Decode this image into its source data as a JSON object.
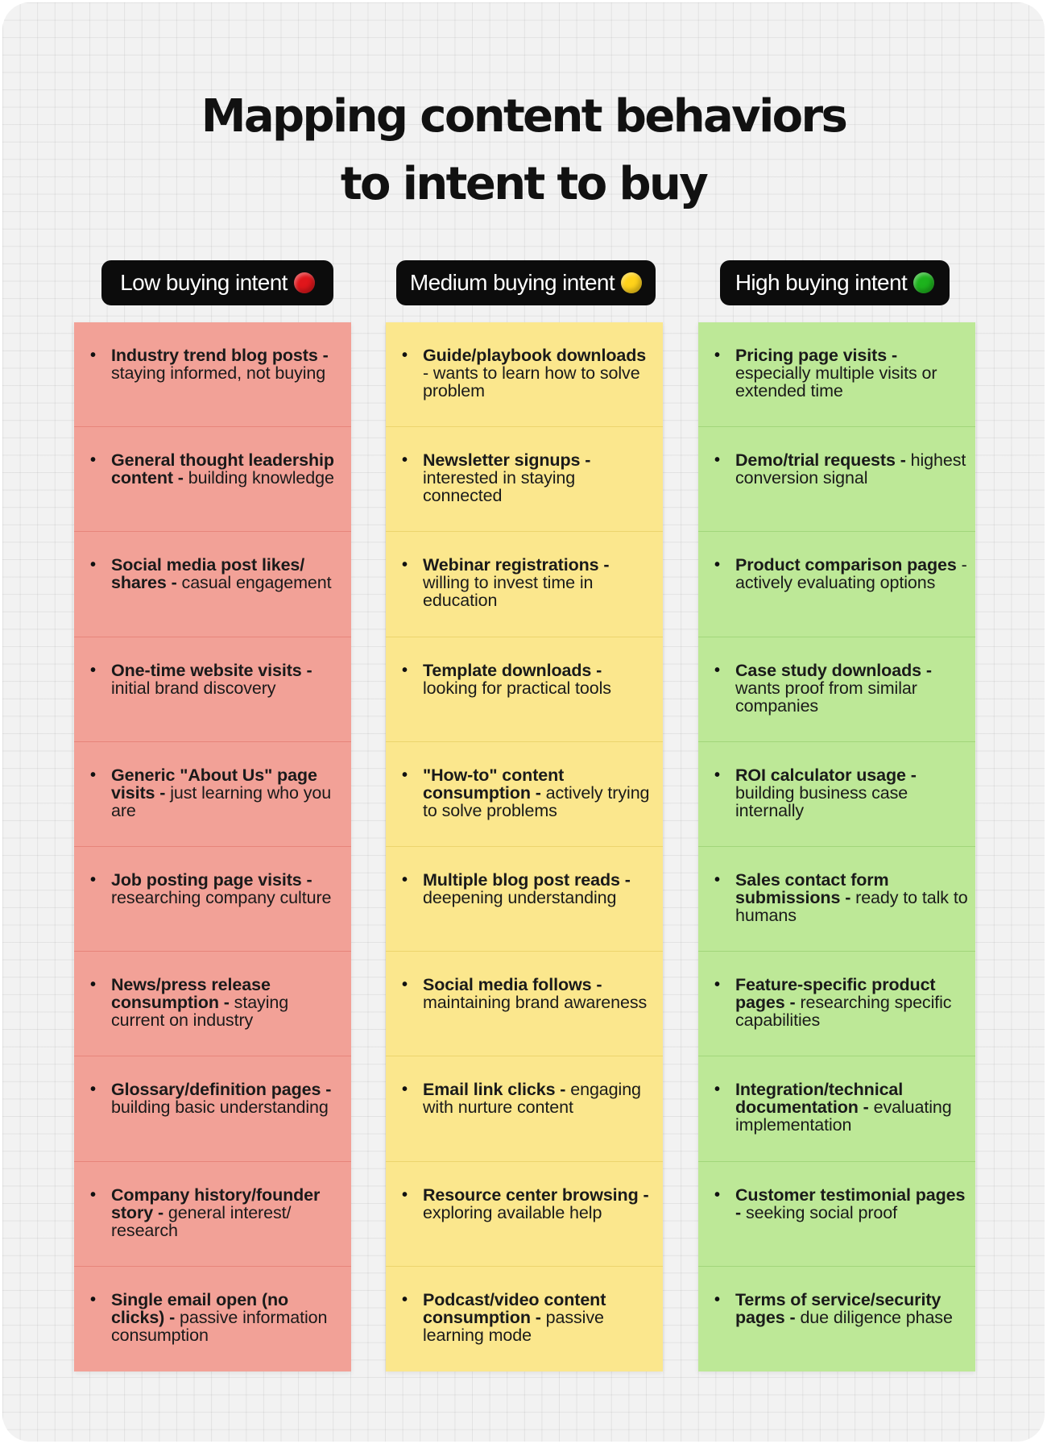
{
  "title": {
    "line1": "Mapping content behaviors",
    "line2": "to intent to buy"
  },
  "columns": [
    {
      "header": "Low buying intent",
      "dot_color": "#e0161b",
      "bg_color": "#f2a197",
      "border_color": "#e7857b",
      "items": [
        {
          "bold": "Industry trend blog posts - ",
          "rest": "staying informed, not buying"
        },
        {
          "bold": "General thought leadership content - ",
          "rest": "building knowledge"
        },
        {
          "bold": "Social media post likes/ shares - ",
          "rest": "casual engagement"
        },
        {
          "bold": "One-time website visits - ",
          "rest": "initial brand discovery"
        },
        {
          "bold": "Generic \"About Us\" page visits - ",
          "rest": "just learning who you are"
        },
        {
          "bold": "Job posting page visits - ",
          "rest": "researching company culture"
        },
        {
          "bold": "News/press release consumption - ",
          "rest": "staying current on industry"
        },
        {
          "bold": "Glossary/definition pages - ",
          "rest": "building basic understanding"
        },
        {
          "bold": "Company history/founder story - ",
          "rest": "general interest/ research"
        },
        {
          "bold": "Single email open (no clicks) - ",
          "rest": "passive information consumption"
        }
      ]
    },
    {
      "header": "Medium buying intent",
      "dot_color": "#ffd21a",
      "bg_color": "#fbe78d",
      "border_color": "#ecd46e",
      "items": [
        {
          "bold": "Guide/playbook downloads ",
          "rest": "- wants to learn how to solve problem"
        },
        {
          "bold": "Newsletter signups - ",
          "rest": "interested in staying connected"
        },
        {
          "bold": "Webinar registrations - ",
          "rest": "willing to invest time in education"
        },
        {
          "bold": "Template downloads - ",
          "rest": "looking for practical tools"
        },
        {
          "bold": "\"How-to\" content consumption - ",
          "rest": "actively trying to solve problems"
        },
        {
          "bold": "Multiple blog post reads - ",
          "rest": "deepening understanding"
        },
        {
          "bold": "Social media follows - ",
          "rest": "maintaining brand awareness"
        },
        {
          "bold": "Email link clicks - ",
          "rest": "engaging with nurture content"
        },
        {
          "bold": "Resource center browsing - ",
          "rest": "exploring available help"
        },
        {
          "bold": "Podcast/video content consumption - ",
          "rest": "passive learning mode"
        }
      ]
    },
    {
      "header": "High buying intent",
      "dot_color": "#1db31d",
      "bg_color": "#bde897",
      "border_color": "#a2d67b",
      "items": [
        {
          "bold": "Pricing page visits - ",
          "rest": "especially multiple visits or extended time"
        },
        {
          "bold": "Demo/trial requests - ",
          "rest": "highest conversion signal"
        },
        {
          "bold": "Product comparison pages ",
          "rest": "- actively evaluating options"
        },
        {
          "bold": "Case study downloads - ",
          "rest": "wants proof from similar companies"
        },
        {
          "bold": "ROI calculator usage - ",
          "rest": "building business case internally"
        },
        {
          "bold": "Sales contact form submissions - ",
          "rest": "ready to talk to humans"
        },
        {
          "bold": "Feature-specific product pages - ",
          "rest": "researching specific capabilities"
        },
        {
          "bold": "Integration/technical documentation - ",
          "rest": "evaluating implementation"
        },
        {
          "bold": "Customer testimonial pages - ",
          "rest": "seeking social proof"
        },
        {
          "bold": "Terms of service/security pages - ",
          "rest": "due diligence phase"
        }
      ]
    }
  ]
}
